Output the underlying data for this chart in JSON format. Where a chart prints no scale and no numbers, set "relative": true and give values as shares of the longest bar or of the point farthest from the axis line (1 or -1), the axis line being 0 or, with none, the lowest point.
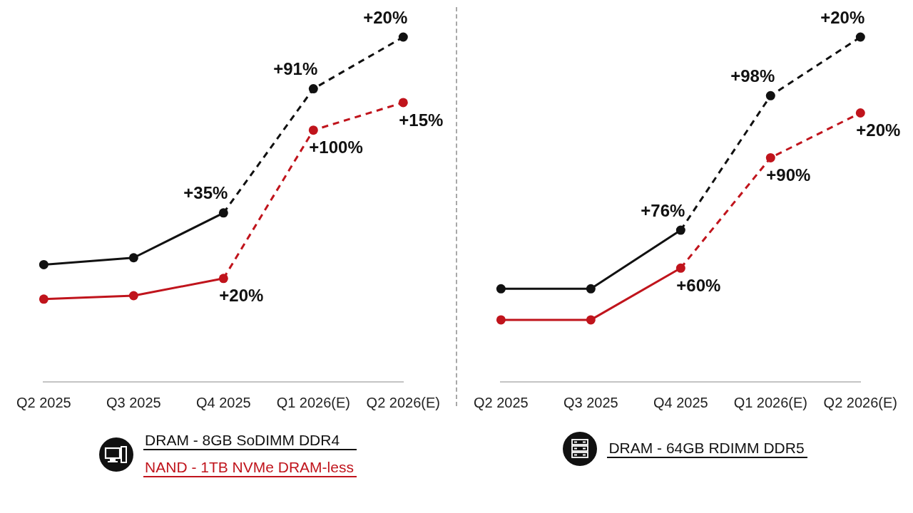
{
  "chart_data": [
    {
      "type": "line",
      "categories": [
        "Q2 2025",
        "Q3 2025",
        "Q4 2025",
        "Q1 2026(E)",
        "Q2 2026(E)"
      ],
      "relative": true,
      "marker": "circle",
      "line_style": "solid",
      "legend": "bottom",
      "series": [
        {
          "name": "DRAM - 8GB SoDIMM DDR4",
          "color": "#111111",
          "values": [
            0.34,
            0.36,
            0.49,
            null,
            null
          ]
        },
        {
          "color": "#111111",
          "line_style": "dashed",
          "values": [
            null,
            null,
            0.49,
            0.85,
            1
          ]
        },
        {
          "name": "NAND - 1TB NVMe DRAM-less",
          "color": "#c0141c",
          "values": [
            0.24,
            0.25,
            0.3,
            null,
            null
          ]
        },
        {
          "color": "#c0141c",
          "line_style": "dashed",
          "values": [
            null,
            null,
            0.3,
            0.73,
            0.81
          ]
        }
      ],
      "annotations": [
        {
          "text": "+35%",
          "x": "Q4 2025",
          "y": 0.49
        },
        {
          "text": "+91%",
          "x": "Q1 2026(E)",
          "y": 0.85
        },
        {
          "text": "+20%",
          "x": "Q2 2026(E)",
          "y": 1
        },
        {
          "text": "+20%",
          "x": "Q4 2025",
          "y": 0.3
        },
        {
          "text": "+100%",
          "x": "Q1 2026(E)",
          "y": 0.73
        },
        {
          "text": "+15%",
          "x": "Q2 2026(E)",
          "y": 0.81
        }
      ]
    },
    {
      "type": "line",
      "categories": [
        "Q2 2025",
        "Q3 2025",
        "Q4 2025",
        "Q1 2026(E)",
        "Q2 2026(E)"
      ],
      "relative": true,
      "marker": "circle",
      "line_style": "solid",
      "legend": "bottom",
      "series": [
        {
          "name": "DRAM - 64GB RDIMM DDR5",
          "color": "#111111",
          "values": [
            0.27,
            0.27,
            0.44,
            null,
            null
          ]
        },
        {
          "color": "#111111",
          "line_style": "dashed",
          "values": [
            null,
            null,
            0.44,
            0.83,
            1
          ]
        },
        {
          "color": "#c0141c",
          "values": [
            0.18,
            0.18,
            0.33,
            null,
            null
          ]
        },
        {
          "color": "#c0141c",
          "line_style": "dashed",
          "values": [
            null,
            null,
            0.33,
            0.65,
            0.78
          ]
        }
      ],
      "annotations": [
        {
          "text": "+76%",
          "x": "Q4 2025",
          "y": 0.44
        },
        {
          "text": "+98%",
          "x": "Q1 2026(E)",
          "y": 0.83
        },
        {
          "text": "+20%",
          "x": "Q2 2026(E)",
          "y": 1
        },
        {
          "text": "+60%",
          "x": "Q4 2025",
          "y": 0.33
        },
        {
          "text": "+90%",
          "x": "Q1 2026(E)",
          "y": 0.65
        },
        {
          "text": "+20%",
          "x": "Q2 2026(E)",
          "y": 0.78
        }
      ]
    }
  ]
}
